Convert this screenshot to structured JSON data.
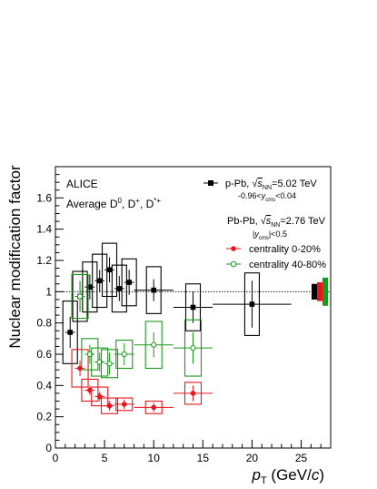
{
  "chart_data": {
    "type": "scatter",
    "experiment": "ALICE",
    "particles": "Average D⁰, D⁺, D*⁺",
    "xlabel": "p_T (GeV/c)",
    "ylabel": "Nuclear modification factor",
    "xlim": [
      0,
      28
    ],
    "ylim": [
      0,
      1.8
    ],
    "x_ticks": [
      0,
      5,
      10,
      15,
      20,
      25
    ],
    "y_ticks": [
      0,
      0.2,
      0.4,
      0.6,
      0.8,
      1,
      1.2,
      1.4,
      1.6
    ],
    "reference_line": 1.0,
    "legend": {
      "ppb_label": "p-Pb, √s_NN=5.02 TeV",
      "ppb_rapidity": "-0.96<y_cms<0.04",
      "pbpb_label": "Pb-Pb, √s_NN=2.76 TeV",
      "pbpb_rapidity": "|y_cms|<0.5",
      "central_label": "centrality 0-20%",
      "semi_label": "centrality 40-80%"
    },
    "series": [
      {
        "key": "ppb",
        "color": "#000000",
        "marker": "square",
        "points": [
          {
            "x": 1.5,
            "xerr": 0.5,
            "y": 0.74,
            "stat": 0.1,
            "syst": 0.2
          },
          {
            "x": 2.5,
            "xerr": 0.5,
            "y": 0.97,
            "stat": 0.09,
            "syst": 0.16
          },
          {
            "x": 3.5,
            "xerr": 0.5,
            "y": 1.03,
            "stat": 0.08,
            "syst": 0.16
          },
          {
            "x": 4.5,
            "xerr": 0.5,
            "y": 1.07,
            "stat": 0.07,
            "syst": 0.17
          },
          {
            "x": 5.5,
            "xerr": 0.5,
            "y": 1.14,
            "stat": 0.08,
            "syst": 0.17
          },
          {
            "x": 6.5,
            "xerr": 0.5,
            "y": 1.02,
            "stat": 0.08,
            "syst": 0.15
          },
          {
            "x": 7.5,
            "xerr": 0.5,
            "y": 1.06,
            "stat": 0.08,
            "syst": 0.15
          },
          {
            "x": 10,
            "xerr": 2,
            "y": 1.01,
            "stat": 0.07,
            "syst": 0.15
          },
          {
            "x": 14,
            "xerr": 2,
            "y": 0.9,
            "stat": 0.1,
            "syst": 0.15
          },
          {
            "x": 20,
            "xerr": 4,
            "y": 0.92,
            "stat": 0.15,
            "syst": 0.2
          }
        ]
      },
      {
        "key": "central",
        "color": "#e8141e",
        "marker": "circle",
        "points": [
          {
            "x": 2.5,
            "xerr": 0.5,
            "y": 0.51,
            "stat": 0.05,
            "syst": 0.12
          },
          {
            "x": 3.5,
            "xerr": 0.5,
            "y": 0.37,
            "stat": 0.03,
            "syst": 0.07
          },
          {
            "x": 4.5,
            "xerr": 0.5,
            "y": 0.33,
            "stat": 0.03,
            "syst": 0.06
          },
          {
            "x": 5.5,
            "xerr": 0.5,
            "y": 0.27,
            "stat": 0.03,
            "syst": 0.05
          },
          {
            "x": 7,
            "xerr": 1,
            "y": 0.28,
            "stat": 0.03,
            "syst": 0.04
          },
          {
            "x": 10,
            "xerr": 2,
            "y": 0.26,
            "stat": 0.03,
            "syst": 0.04
          },
          {
            "x": 14,
            "xerr": 2,
            "y": 0.35,
            "stat": 0.05,
            "syst": 0.07
          }
        ]
      },
      {
        "key": "semi",
        "color": "#1a9a1a",
        "marker": "open-circle",
        "points": [
          {
            "x": 2.5,
            "xerr": 0.5,
            "y": 0.97,
            "stat": 0.1,
            "syst": 0.14
          },
          {
            "x": 3.5,
            "xerr": 0.5,
            "y": 0.6,
            "stat": 0.06,
            "syst": 0.1
          },
          {
            "x": 4.5,
            "xerr": 0.5,
            "y": 0.55,
            "stat": 0.06,
            "syst": 0.09
          },
          {
            "x": 5.5,
            "xerr": 0.5,
            "y": 0.54,
            "stat": 0.07,
            "syst": 0.09
          },
          {
            "x": 7,
            "xerr": 1,
            "y": 0.6,
            "stat": 0.07,
            "syst": 0.09
          },
          {
            "x": 10,
            "xerr": 2,
            "y": 0.66,
            "stat": 0.08,
            "syst": 0.15
          },
          {
            "x": 14,
            "xerr": 2,
            "y": 0.64,
            "stat": 0.1,
            "syst": 0.18
          }
        ]
      }
    ],
    "normalization_boxes": [
      {
        "color": "#000000",
        "low": 0.95,
        "high": 1.05
      },
      {
        "color": "#e8141e",
        "low": 0.94,
        "high": 1.06
      },
      {
        "color": "#1a9a1a",
        "low": 0.91,
        "high": 1.09
      }
    ]
  }
}
